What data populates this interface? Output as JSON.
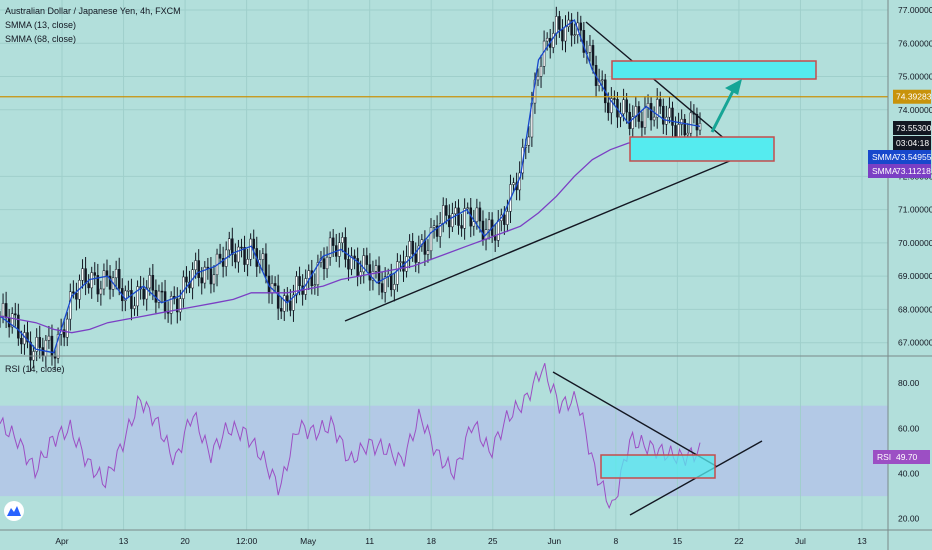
{
  "chart_data": {
    "type": "line",
    "title": "Australian Dollar / Japanese Yen, 4h, FXCM",
    "x_ticks": [
      "Apr",
      "13",
      "20",
      "12:00",
      "May",
      "11",
      "18",
      "25",
      "Jun",
      "8",
      "15",
      "22",
      "Jul",
      "13"
    ],
    "price_pane": {
      "ylim": [
        66.6,
        77.3
      ],
      "y_ticks": [
        "77.00000",
        "76.00000",
        "75.00000",
        "74.00000",
        "72.00000",
        "71.00000",
        "70.00000",
        "69.00000",
        "68.00000",
        "67.00000"
      ],
      "indicators": [
        "SMMA (13, close)",
        "SMMA (68, close)"
      ],
      "series": [
        {
          "values": [
            67.8,
            67.4,
            66.8,
            66.7,
            68.4,
            68.9,
            69.0,
            68.3,
            68.7,
            68.2,
            68.4,
            69.1,
            69.3,
            69.7,
            69.9,
            68.7,
            68.2,
            68.7,
            69.6,
            69.8,
            69.4,
            68.8,
            69.1,
            69.6,
            70.3,
            70.7,
            71.0,
            70.2,
            70.8,
            72.0,
            75.5,
            76.3,
            76.7,
            75.2,
            74.3,
            73.6,
            74.1,
            73.7,
            73.6,
            73.5
          ]
        },
        {
          "values": [
            67.8,
            67.7,
            67.6,
            67.4,
            67.3,
            67.4,
            67.6,
            67.7,
            67.8,
            67.9,
            68.0,
            68.1,
            68.2,
            68.3,
            68.5,
            68.5,
            68.5,
            68.6,
            68.7,
            68.9,
            69.0,
            69.1,
            69.2,
            69.3,
            69.5,
            69.7,
            69.9,
            70.1,
            70.3,
            70.5,
            70.9,
            71.4,
            72.0,
            72.5,
            72.8,
            73.0,
            73.1,
            73.1,
            73.1,
            73.1
          ]
        }
      ],
      "horizontal_line": 74.39283,
      "price_labels": [
        {
          "text": "74.39283",
          "color": "#c8930b"
        },
        {
          "text": "73.55300",
          "color": "#131722"
        },
        {
          "text": "03:04:18",
          "color": "#131722"
        },
        {
          "tag": "SMMA",
          "text": "73.54955",
          "color": "#1848cc"
        },
        {
          "tag": "SMMA",
          "text": "73.11218",
          "color": "#7b3fc4"
        }
      ]
    },
    "rsi_pane": {
      "label": "RSI (14, close)",
      "ylim": [
        15,
        92
      ],
      "y_ticks": [
        "80.00",
        "60.00",
        "40.00",
        "20.00"
      ],
      "band": [
        30,
        70
      ],
      "values": [
        62,
        55,
        41,
        55,
        60,
        45,
        36,
        53,
        73,
        62,
        45,
        67,
        48,
        60,
        58,
        47,
        33,
        61,
        58,
        62,
        45,
        53,
        51,
        45,
        66,
        48,
        40,
        63,
        49,
        65,
        72,
        87,
        70,
        73,
        41,
        24,
        55,
        52,
        49,
        47,
        49.7
      ],
      "last_tag": "RSI",
      "last_value": "49.70"
    }
  },
  "colors": {
    "background": "#b2dfdb",
    "rsi_band": "#b3c6e7",
    "smma_fast": "#1848cc",
    "smma_slow": "#7b3fc4",
    "rsi_line": "#9c4fc4",
    "horizontal_line": "#c8930b",
    "zone_fill": "#55ebef",
    "zone_border": "#c44d4d",
    "arrow": "#16a596"
  },
  "icons": [
    "tradingview-logo-icon"
  ]
}
